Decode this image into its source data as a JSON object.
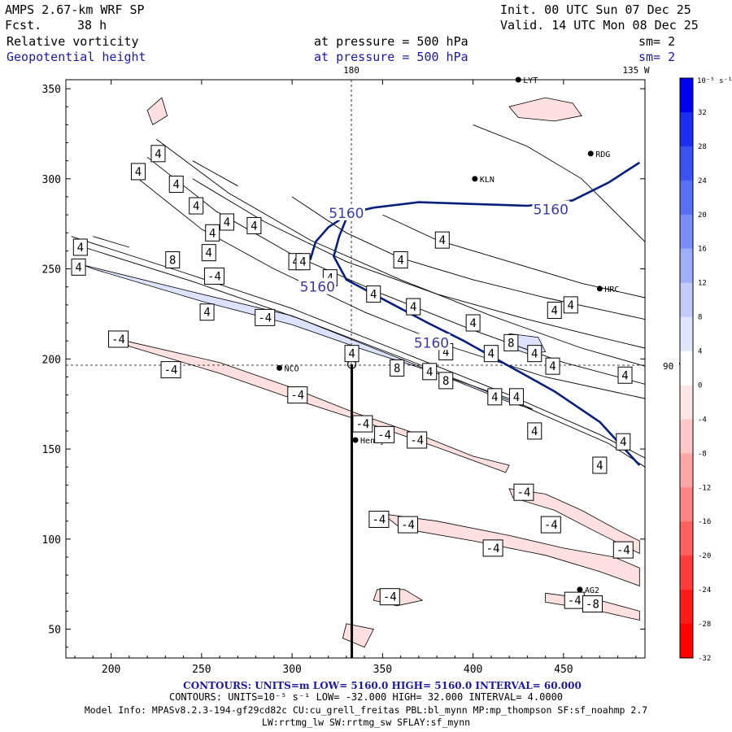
{
  "header": {
    "model": "AMPS 2.67-km WRF SP",
    "fcst_label": "Fcst.",
    "fcst_value": "38 h",
    "init": "Init. 00 UTC Sun 07 Dec 25",
    "valid": "Valid. 14 UTC Mon 08 Dec 25",
    "field1_name": "Relative vorticity",
    "field1_level": "at pressure =  500 hPa",
    "field1_smooth": "sm= 2",
    "field2_name": "Geopotential height",
    "field2_level": "at pressure =  500 hPa",
    "field2_smooth": "sm= 2"
  },
  "colors": {
    "blue_text": "#1b1b9a",
    "height_contour": "#0a1f7a",
    "pos_fill": "#dde3ff",
    "neg_fill": "#ffe0e0"
  },
  "chart_data": {
    "type": "contour",
    "xlim": [
      175,
      495
    ],
    "ylim": [
      34,
      355
    ],
    "x_ticks": [
      200,
      250,
      300,
      350,
      400,
      450
    ],
    "y_ticks": [
      50,
      100,
      150,
      200,
      250,
      300,
      350
    ],
    "meridian_labels": {
      "top_180": "180",
      "top_135w": "135 W",
      "right_90w": "90 W"
    },
    "height_contours": {
      "field": "Geopotential height",
      "units": "m",
      "low": 5160.0,
      "high": 5160.0,
      "interval": 60.0,
      "labels": [
        {
          "text": "5160",
          "x": 330,
          "y": 281
        },
        {
          "text": "5160",
          "x": 314,
          "y": 240
        },
        {
          "text": "5160",
          "x": 377,
          "y": 209
        },
        {
          "text": "5160",
          "x": 443,
          "y": 283
        }
      ],
      "lines": [
        [
          [
            310,
            255
          ],
          [
            313,
            265
          ],
          [
            320,
            273
          ],
          [
            332,
            281
          ],
          [
            345,
            284
          ]
        ],
        [
          [
            330,
            278
          ],
          [
            326,
            268
          ],
          [
            323,
            257
          ],
          [
            330,
            244
          ],
          [
            345,
            236
          ],
          [
            360,
            228
          ],
          [
            375,
            220
          ],
          [
            395,
            210
          ],
          [
            420,
            196
          ],
          [
            445,
            182
          ],
          [
            470,
            165
          ],
          [
            492,
            141
          ]
        ],
        [
          [
            345,
            284
          ],
          [
            370,
            287
          ],
          [
            400,
            286
          ],
          [
            430,
            285
          ],
          [
            455,
            288
          ],
          [
            475,
            298
          ],
          [
            492,
            309
          ]
        ]
      ]
    },
    "vorticity": {
      "field": "Relative vorticity",
      "units": "10^-5 s^-1",
      "low": -32.0,
      "high": 32.0,
      "interval": 4.0,
      "positive_labels": [
        {
          "text": "4",
          "x": 215,
          "y": 304
        },
        {
          "text": "4",
          "x": 226,
          "y": 314
        },
        {
          "text": "4",
          "x": 236,
          "y": 297
        },
        {
          "text": "4",
          "x": 247,
          "y": 285
        },
        {
          "text": "4",
          "x": 256,
          "y": 270
        },
        {
          "text": "4",
          "x": 264,
          "y": 276
        },
        {
          "text": "4",
          "x": 279,
          "y": 274
        },
        {
          "text": "4",
          "x": 254,
          "y": 259
        },
        {
          "text": "4",
          "x": 183,
          "y": 262
        },
        {
          "text": "4",
          "x": 182,
          "y": 251
        },
        {
          "text": "8",
          "x": 234,
          "y": 255
        },
        {
          "text": "4",
          "x": 302,
          "y": 254
        },
        {
          "text": "4",
          "x": 306,
          "y": 254
        },
        {
          "text": "4",
          "x": 321,
          "y": 245
        },
        {
          "text": "4",
          "x": 345,
          "y": 236
        },
        {
          "text": "4",
          "x": 360,
          "y": 255
        },
        {
          "text": "4",
          "x": 383,
          "y": 266
        },
        {
          "text": "4",
          "x": 367,
          "y": 229
        },
        {
          "text": "4",
          "x": 253,
          "y": 226
        },
        {
          "text": "4",
          "x": 333,
          "y": 203
        },
        {
          "text": "8",
          "x": 358,
          "y": 195
        },
        {
          "text": "4",
          "x": 376,
          "y": 193
        },
        {
          "text": "8",
          "x": 385,
          "y": 188
        },
        {
          "text": "4",
          "x": 385,
          "y": 204
        },
        {
          "text": "4",
          "x": 400,
          "y": 220
        },
        {
          "text": "4",
          "x": 410,
          "y": 203
        },
        {
          "text": "8",
          "x": 421,
          "y": 209
        },
        {
          "text": "4",
          "x": 412,
          "y": 179
        },
        {
          "text": "4",
          "x": 424,
          "y": 179
        },
        {
          "text": "4",
          "x": 434,
          "y": 203
        },
        {
          "text": "4",
          "x": 444,
          "y": 196
        },
        {
          "text": "4",
          "x": 434,
          "y": 160
        },
        {
          "text": "4",
          "x": 445,
          "y": 227
        },
        {
          "text": "4",
          "x": 454,
          "y": 230
        },
        {
          "text": "4",
          "x": 484,
          "y": 191
        },
        {
          "text": "4",
          "x": 483,
          "y": 154
        },
        {
          "text": "4",
          "x": 470,
          "y": 141
        }
      ],
      "negative_labels": [
        {
          "text": "-4",
          "x": 257,
          "y": 246
        },
        {
          "text": "-4",
          "x": 285,
          "y": 223
        },
        {
          "text": "-4",
          "x": 204,
          "y": 211
        },
        {
          "text": "-4",
          "x": 233,
          "y": 194
        },
        {
          "text": "-4",
          "x": 303,
          "y": 180
        },
        {
          "text": "-4",
          "x": 339,
          "y": 164
        },
        {
          "text": "-4",
          "x": 351,
          "y": 158
        },
        {
          "text": "-4",
          "x": 369,
          "y": 155
        },
        {
          "text": "-4",
          "x": 428,
          "y": 126
        },
        {
          "text": "-4",
          "x": 348,
          "y": 111
        },
        {
          "text": "-4",
          "x": 364,
          "y": 108
        },
        {
          "text": "-4",
          "x": 443,
          "y": 108
        },
        {
          "text": "-4",
          "x": 411,
          "y": 95
        },
        {
          "text": "-4",
          "x": 483,
          "y": 94
        },
        {
          "text": "-4",
          "x": 354,
          "y": 68
        },
        {
          "text": "-4",
          "x": 456,
          "y": 66
        },
        {
          "text": "-8",
          "x": 466,
          "y": 64
        }
      ],
      "positive_bands": [
        [
          [
            185,
            252
          ],
          [
            250,
            236
          ],
          [
            300,
            224
          ],
          [
            340,
            208
          ],
          [
            370,
            196
          ],
          [
            400,
            184
          ],
          [
            420,
            176
          ],
          [
            433,
            172
          ],
          [
            420,
            178
          ],
          [
            380,
            192
          ],
          [
            340,
            205
          ],
          [
            300,
            219
          ],
          [
            250,
            232
          ],
          [
            190,
            250
          ]
        ],
        [
          [
            420,
            214
          ],
          [
            436,
            212
          ],
          [
            440,
            204
          ],
          [
            430,
            203
          ],
          [
            418,
            207
          ]
        ]
      ],
      "negative_bands": [
        [
          [
            208,
            210
          ],
          [
            260,
            198
          ],
          [
            300,
            184
          ],
          [
            335,
            170
          ],
          [
            370,
            158
          ],
          [
            400,
            146
          ],
          [
            420,
            141
          ],
          [
            418,
            137
          ],
          [
            380,
            151
          ],
          [
            340,
            165
          ],
          [
            300,
            178
          ],
          [
            260,
            192
          ],
          [
            210,
            207
          ]
        ],
        [
          [
            350,
            114
          ],
          [
            380,
            110
          ],
          [
            420,
            102
          ],
          [
            450,
            95
          ],
          [
            478,
            90
          ],
          [
            492,
            84
          ],
          [
            492,
            74
          ],
          [
            470,
            82
          ],
          [
            440,
            91
          ],
          [
            400,
            99
          ],
          [
            360,
            106
          ]
        ],
        [
          [
            420,
            128
          ],
          [
            440,
            125
          ],
          [
            460,
            116
          ],
          [
            480,
            105
          ],
          [
            492,
            99
          ],
          [
            492,
            92
          ],
          [
            470,
            103
          ],
          [
            445,
            116
          ],
          [
            422,
            123
          ]
        ],
        [
          [
            347,
            72
          ],
          [
            362,
            72
          ],
          [
            372,
            66
          ],
          [
            358,
            63
          ],
          [
            345,
            66
          ]
        ],
        [
          [
            440,
            70
          ],
          [
            470,
            66
          ],
          [
            492,
            60
          ],
          [
            492,
            55
          ],
          [
            470,
            60
          ],
          [
            440,
            65
          ]
        ],
        [
          [
            330,
            53
          ],
          [
            345,
            50
          ],
          [
            340,
            40
          ],
          [
            328,
            45
          ]
        ],
        [
          [
            220,
            338
          ],
          [
            228,
            345
          ],
          [
            231,
            335
          ],
          [
            223,
            330
          ]
        ],
        [
          [
            420,
            340
          ],
          [
            440,
            345
          ],
          [
            455,
            342
          ],
          [
            460,
            335
          ],
          [
            445,
            332
          ],
          [
            425,
            334
          ]
        ]
      ]
    },
    "stations": [
      {
        "name": "NCO",
        "x": 293,
        "y": 195
      },
      {
        "name": "Henry",
        "x": 335,
        "y": 155
      },
      {
        "name": "KLN",
        "x": 401,
        "y": 300
      },
      {
        "name": "RDG",
        "x": 465,
        "y": 314
      },
      {
        "name": "HRC",
        "x": 470,
        "y": 239
      },
      {
        "name": "AG2",
        "x": 459,
        "y": 72
      },
      {
        "name": "LYT",
        "x": 425,
        "y": 355
      }
    ],
    "cross_section_line": [
      [
        333,
        197
      ],
      [
        333,
        34
      ]
    ]
  },
  "colorbar": {
    "unit_label": "10⁻⁵ s⁻¹",
    "top_label": "10",
    "ticks": [
      "32",
      "28",
      "24",
      "20",
      "16",
      "12",
      "8",
      "4",
      "0",
      "-4",
      "-8",
      "-12",
      "-16",
      "-20",
      "-24",
      "-28",
      "-32"
    ],
    "colors": [
      "#0000ee",
      "#1c2ef0",
      "#3b52f2",
      "#5a70f4",
      "#7b8ef6",
      "#9eaef8",
      "#c2ccfa",
      "#e0e6fd",
      "#ffffff",
      "#ffe6e6",
      "#ffc8c8",
      "#ffa6a6",
      "#ff8484",
      "#ff6060",
      "#ff3c3c",
      "#ff1a1a",
      "#ff0000"
    ]
  },
  "footer": {
    "contours1": "CONTOURS:  UNITS=m  LOW=  5160.0      HIGH=  5160.0      INTERVAL=   60.000",
    "contours2": "CONTOURS:  UNITS=10⁻⁵ s⁻¹  LOW=  -32.000      HIGH=  32.000      INTERVAL=   4.0000",
    "model_info1": "Model Info: MPASv8.2.3-194-gf29cd82c CU:cu_grell_freitas PBL:bl_mynn MP:mp_thompson SF:sf_noahmp 2.7",
    "model_info2": "LW:rrtmg_lw SW:rrtmg_sw SFLAY:sf_mynn"
  }
}
